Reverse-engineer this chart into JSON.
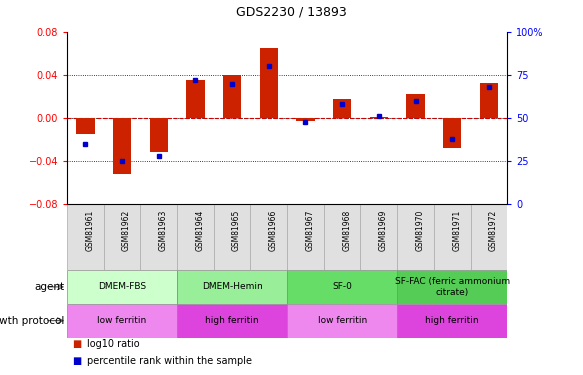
{
  "title": "GDS2230 / 13893",
  "samples": [
    "GSM81961",
    "GSM81962",
    "GSM81963",
    "GSM81964",
    "GSM81965",
    "GSM81966",
    "GSM81967",
    "GSM81968",
    "GSM81969",
    "GSM81970",
    "GSM81971",
    "GSM81972"
  ],
  "log10_ratio": [
    -0.015,
    -0.052,
    -0.031,
    0.035,
    0.04,
    0.065,
    -0.003,
    0.018,
    0.001,
    0.022,
    -0.028,
    0.033
  ],
  "percentile_rank": [
    35,
    25,
    28,
    72,
    70,
    80,
    48,
    58,
    51,
    60,
    38,
    68
  ],
  "ylim": [
    -0.08,
    0.08
  ],
  "yticks_left": [
    -0.08,
    -0.04,
    0.0,
    0.04,
    0.08
  ],
  "yticks_right": [
    0,
    25,
    50,
    75,
    100
  ],
  "bar_color": "#cc2200",
  "dot_color": "#0000cc",
  "zero_line_color": "#cc0000",
  "agent_groups": [
    {
      "label": "DMEM-FBS",
      "start": 0,
      "end": 3,
      "color": "#ccffcc"
    },
    {
      "label": "DMEM-Hemin",
      "start": 3,
      "end": 6,
      "color": "#99ee99"
    },
    {
      "label": "SF-0",
      "start": 6,
      "end": 9,
      "color": "#66dd66"
    },
    {
      "label": "SF-FAC (ferric ammonium\ncitrate)",
      "start": 9,
      "end": 12,
      "color": "#55cc55"
    }
  ],
  "protocol_groups": [
    {
      "label": "low ferritin",
      "start": 0,
      "end": 3,
      "color": "#ee88ee"
    },
    {
      "label": "high ferritin",
      "start": 3,
      "end": 6,
      "color": "#dd44dd"
    },
    {
      "label": "low ferritin",
      "start": 6,
      "end": 9,
      "color": "#ee88ee"
    },
    {
      "label": "high ferritin",
      "start": 9,
      "end": 12,
      "color": "#dd44dd"
    }
  ],
  "legend_red_label": "log10 ratio",
  "legend_blue_label": "percentile rank within the sample",
  "bar_width": 0.5
}
